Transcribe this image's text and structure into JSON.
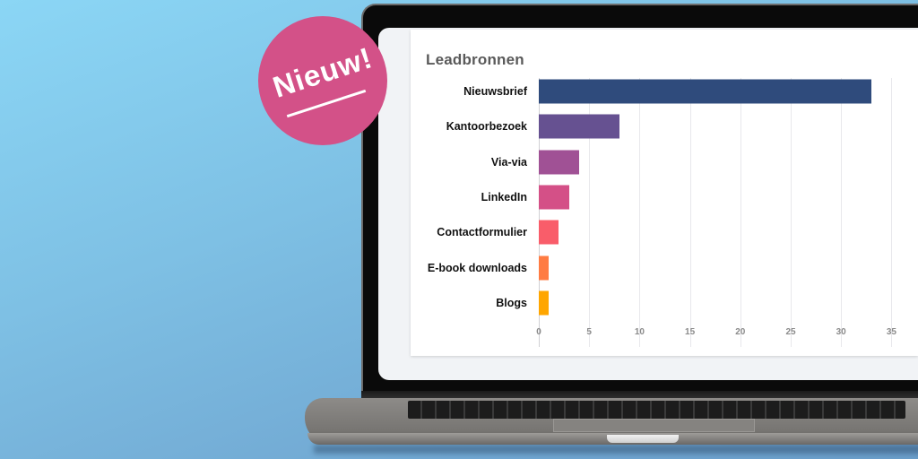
{
  "badge": {
    "label": "Nieuw!",
    "color": "#D35188"
  },
  "card": {
    "title": "Leadbronnen"
  },
  "chart_data": {
    "type": "bar",
    "orientation": "horizontal",
    "title": "Leadbronnen",
    "xlabel": "",
    "ylabel": "",
    "categories": [
      "Nieuwsbrief",
      "Kantoorbezoek",
      "Via-via",
      "LinkedIn",
      "Contactformulier",
      "E-book downloads",
      "Blogs"
    ],
    "values": [
      33,
      8,
      4,
      3,
      2,
      1,
      1
    ],
    "colors": [
      "#2F4B7C",
      "#665191",
      "#A05195",
      "#D45087",
      "#F95D6A",
      "#FF7C43",
      "#FFA600"
    ],
    "xlim": [
      0,
      35
    ],
    "xticks": [
      "0",
      "5",
      "10",
      "15",
      "20",
      "25",
      "30",
      "35"
    ],
    "grid": true,
    "legend": "none"
  }
}
